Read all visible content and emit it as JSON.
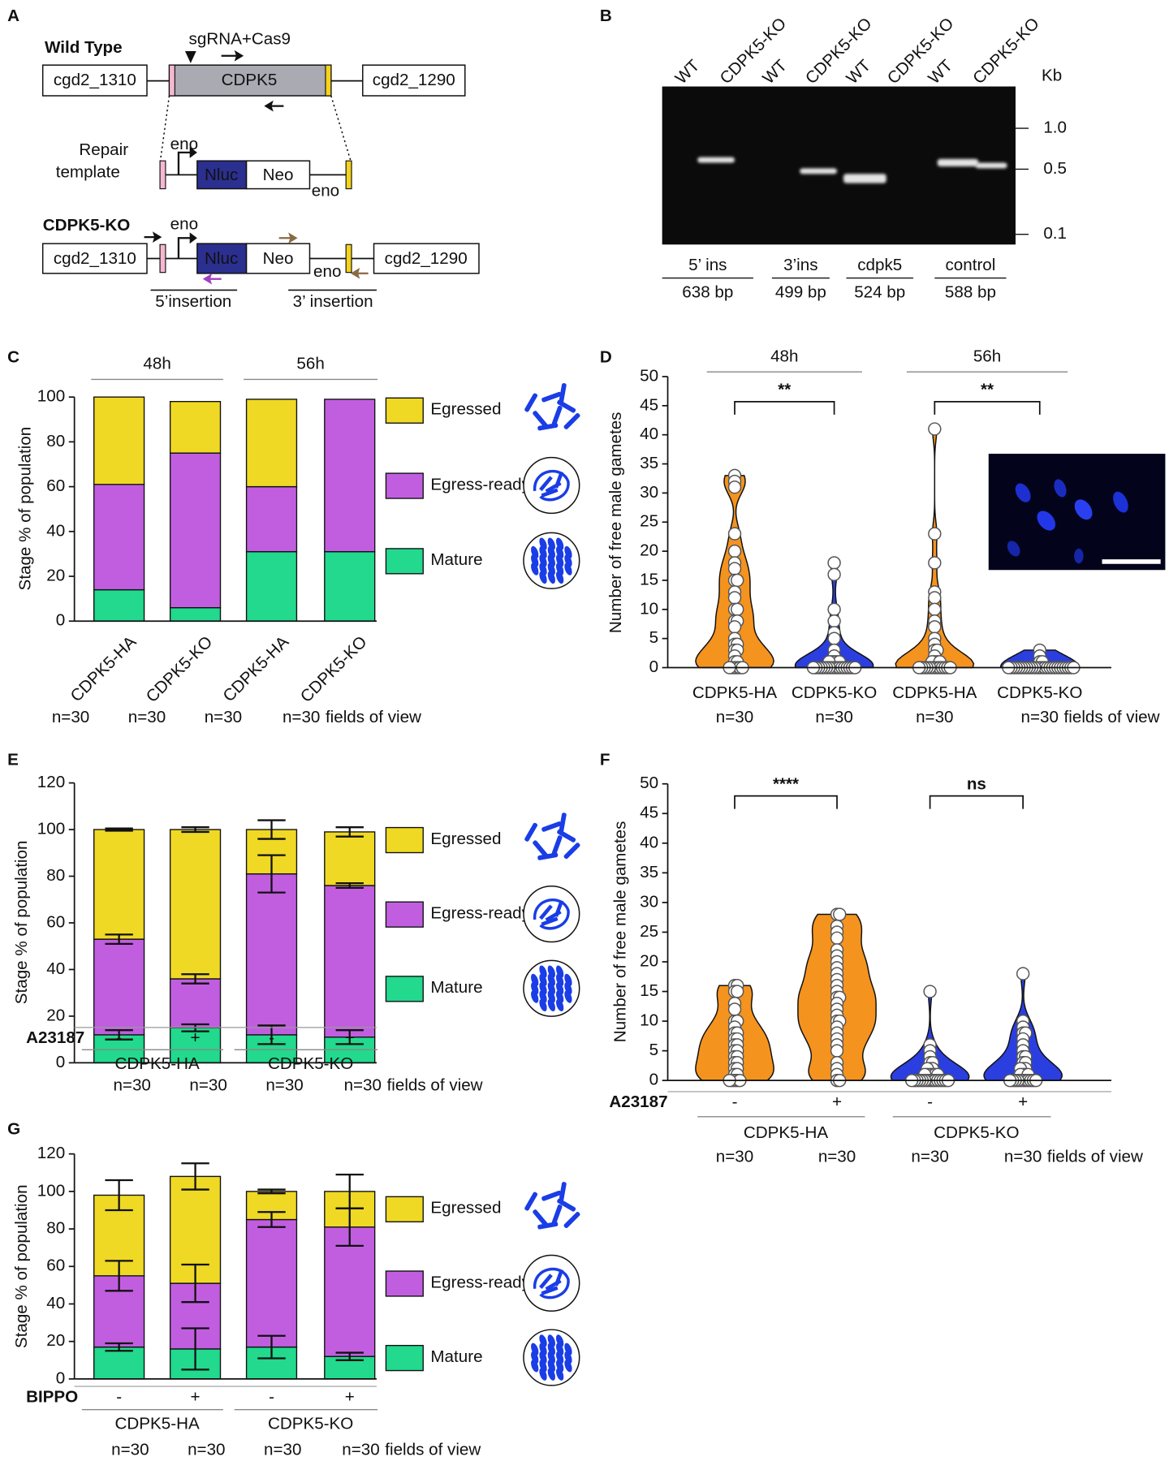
{
  "panel_a": {
    "label": "A",
    "wild_type": {
      "title": "Wild Type",
      "guide": "sgRNA+Cas9",
      "left_gene": "cgd2_1310",
      "gene": "CDPK5",
      "right_gene": "cgd2_1290"
    },
    "repair": {
      "title_lines": [
        "Repair",
        "template"
      ],
      "promoter": "eno",
      "reporter": "Nluc",
      "marker": "Neo",
      "terminator": "eno"
    },
    "knockout": {
      "title": "CDPK5-KO",
      "left_gene": "cgd2_1310",
      "promoter": "eno",
      "reporter": "Nluc",
      "marker": "Neo",
      "terminator": "eno",
      "right_gene": "cgd2_1290",
      "insertion_5": "5’insertion",
      "insertion_3": "3’ insertion"
    }
  },
  "panel_b": {
    "label": "B",
    "lanes": [
      "WT",
      "CDPK5-KO",
      "WT",
      "CDPK5-KO",
      "WT",
      "CDPK5-KO",
      "WT",
      "CDPK5-KO"
    ],
    "size_unit": "Kb",
    "ladder": [
      "1.0",
      "0.5",
      "0.1"
    ],
    "products": [
      {
        "name": "5’ ins",
        "size": "638 bp"
      },
      {
        "name": "3’ins",
        "size": "499 bp"
      },
      {
        "name": "cdpk5",
        "size": "524 bp"
      },
      {
        "name": "control",
        "size": "588 bp"
      }
    ]
  },
  "chart_data": [
    {
      "panel": "C",
      "type": "bar",
      "y_label": "Stage % of population",
      "categories": [
        "CDPK5-HA",
        "CDPK5-KO",
        "CDPK5-HA",
        "CDPK5-KO"
      ],
      "groups": [
        "48h",
        "56h"
      ],
      "group_position": "top",
      "series": [
        {
          "name": "Egressed",
          "color": "#efd924",
          "values": [
            39,
            23,
            39,
            0
          ]
        },
        {
          "name": "Egress-ready",
          "color": "#c15ee0",
          "values": [
            47,
            69,
            29,
            68
          ]
        },
        {
          "name": "Mature",
          "color": "#22d98d",
          "values": [
            14,
            6,
            31,
            31
          ]
        }
      ],
      "ylim": [
        0,
        100
      ],
      "yticks": [
        0,
        20,
        40,
        60,
        80,
        100
      ],
      "sample_sizes": [
        "n=30",
        "n=30",
        "n=30",
        "n=30"
      ],
      "sample_unit": "fields of view"
    },
    {
      "panel": "D",
      "type": "violin",
      "y_label": "Number of free male gametes",
      "categories": [
        "CDPK5-HA",
        "CDPK5-KO",
        "CDPK5-HA",
        "CDPK5-KO"
      ],
      "colors": [
        "#f5931f",
        "#2b3fe0",
        "#f5931f",
        "#2b3fe0"
      ],
      "values": [
        [
          33,
          32,
          31,
          23,
          20,
          18,
          17,
          15,
          15,
          13,
          12,
          10,
          10,
          8,
          8,
          7,
          5,
          4,
          4,
          3,
          3,
          2,
          1,
          1,
          0,
          0,
          0,
          0,
          0,
          0
        ],
        [
          18,
          16,
          10,
          8,
          6,
          5,
          3,
          2,
          1,
          1,
          1,
          1,
          1,
          0,
          0,
          0,
          0,
          0,
          0,
          0,
          0,
          0,
          0,
          0,
          0,
          0,
          0,
          0,
          0,
          0
        ],
        [
          41,
          23,
          18,
          13,
          12,
          10,
          8,
          7,
          5,
          4,
          3,
          3,
          2,
          1,
          1,
          1,
          1,
          0,
          0,
          0,
          0,
          0,
          0,
          0,
          0,
          0,
          0,
          0,
          0,
          0
        ],
        [
          3,
          2,
          1,
          1,
          0,
          0,
          0,
          0,
          0,
          0,
          0,
          0,
          0,
          0,
          0,
          0,
          0,
          0,
          0,
          0,
          0,
          0,
          0,
          0,
          0,
          0,
          0,
          0,
          0,
          0
        ]
      ],
      "groups": [
        "48h",
        "56h"
      ],
      "group_position": "top",
      "significance": [
        "**",
        "**"
      ],
      "ylim": [
        0,
        50
      ],
      "yticks": [
        0,
        5,
        10,
        15,
        20,
        25,
        30,
        35,
        40,
        45,
        50
      ],
      "sample_sizes": [
        "n=30",
        "n=30",
        "n=30",
        "n=30"
      ],
      "sample_unit": "fields of view"
    },
    {
      "panel": "E",
      "type": "bar",
      "y_label": "Stage % of population",
      "treatment": "A23187",
      "categories": [
        "-",
        "+",
        "-",
        "+"
      ],
      "groups": [
        "CDPK5-HA",
        "CDPK5-KO"
      ],
      "group_position": "bottom",
      "series": [
        {
          "name": "Egressed",
          "color": "#efd924",
          "values": [
            47,
            64,
            19,
            23
          ],
          "errors": [
            0.5,
            1,
            4,
            2
          ]
        },
        {
          "name": "Egress-ready",
          "color": "#c15ee0",
          "values": [
            41,
            21,
            69,
            65
          ],
          "errors": [
            2,
            2,
            8,
            1
          ]
        },
        {
          "name": "Mature",
          "color": "#22d98d",
          "values": [
            12,
            15,
            12,
            11
          ],
          "errors": [
            2,
            1.5,
            4,
            3
          ]
        }
      ],
      "ylim": [
        0,
        120
      ],
      "yticks": [
        0,
        20,
        40,
        60,
        80,
        100,
        120
      ],
      "sample_sizes": [
        "n=30",
        "n=30",
        "n=30",
        "n=30"
      ],
      "sample_unit": "fields of view"
    },
    {
      "panel": "F",
      "type": "violin",
      "y_label": "Number of free male gametes",
      "treatment": "A23187",
      "categories": [
        "-",
        "+",
        "-",
        "+"
      ],
      "colors": [
        "#f5931f",
        "#f5931f",
        "#2b3fe0",
        "#2b3fe0"
      ],
      "values": [
        [
          16,
          16,
          15,
          15,
          13,
          12,
          10,
          10,
          9,
          8,
          8,
          7,
          7,
          6,
          6,
          5,
          5,
          4,
          4,
          3,
          3,
          2,
          2,
          1,
          1,
          0,
          0,
          0,
          0,
          0
        ],
        [
          28,
          28,
          26,
          25,
          24,
          22,
          21,
          20,
          19,
          18,
          17,
          16,
          15,
          14,
          14,
          13,
          12,
          11,
          10,
          10,
          9,
          8,
          7,
          6,
          5,
          3,
          2,
          1,
          0,
          0
        ],
        [
          15,
          6,
          5,
          4,
          3,
          3,
          2,
          2,
          2,
          1,
          1,
          1,
          1,
          1,
          1,
          0,
          0,
          0,
          0,
          0,
          0,
          0,
          0,
          0,
          0,
          0,
          0,
          0,
          0,
          0
        ],
        [
          18,
          10,
          9,
          8,
          8,
          7,
          6,
          5,
          4,
          4,
          3,
          3,
          2,
          2,
          2,
          1,
          1,
          1,
          1,
          0,
          0,
          0,
          0,
          0,
          0,
          0,
          0,
          0,
          0,
          0
        ]
      ],
      "groups": [
        "CDPK5-HA",
        "CDPK5-KO"
      ],
      "group_position": "bottom",
      "significance": [
        "****",
        "ns"
      ],
      "ylim": [
        0,
        50
      ],
      "yticks": [
        0,
        5,
        10,
        15,
        20,
        25,
        30,
        35,
        40,
        45,
        50
      ],
      "sample_sizes": [
        "n=30",
        "n=30",
        "n=30",
        "n=30"
      ],
      "sample_unit": "fields of view"
    },
    {
      "panel": "G",
      "type": "bar",
      "y_label": "Stage % of population",
      "treatment": "BIPPO",
      "categories": [
        "-",
        "+",
        "-",
        "+"
      ],
      "groups": [
        "CDPK5-HA",
        "CDPK5-KO"
      ],
      "group_position": "bottom",
      "series": [
        {
          "name": "Egressed",
          "color": "#efd924",
          "values": [
            43,
            57,
            15,
            19
          ],
          "errors": [
            8,
            7,
            1,
            9
          ]
        },
        {
          "name": "Egress-ready",
          "color": "#c15ee0",
          "values": [
            38,
            35,
            68,
            69
          ],
          "errors": [
            8,
            10,
            4,
            10
          ]
        },
        {
          "name": "Mature",
          "color": "#22d98d",
          "values": [
            17,
            16,
            17,
            12
          ],
          "errors": [
            2,
            11,
            6,
            2
          ]
        }
      ],
      "ylim": [
        0,
        120
      ],
      "yticks": [
        0,
        20,
        40,
        60,
        80,
        100,
        120
      ],
      "sample_sizes": [
        "n=30",
        "n=30",
        "n=30",
        "n=30"
      ],
      "sample_unit": "fields of view"
    }
  ]
}
